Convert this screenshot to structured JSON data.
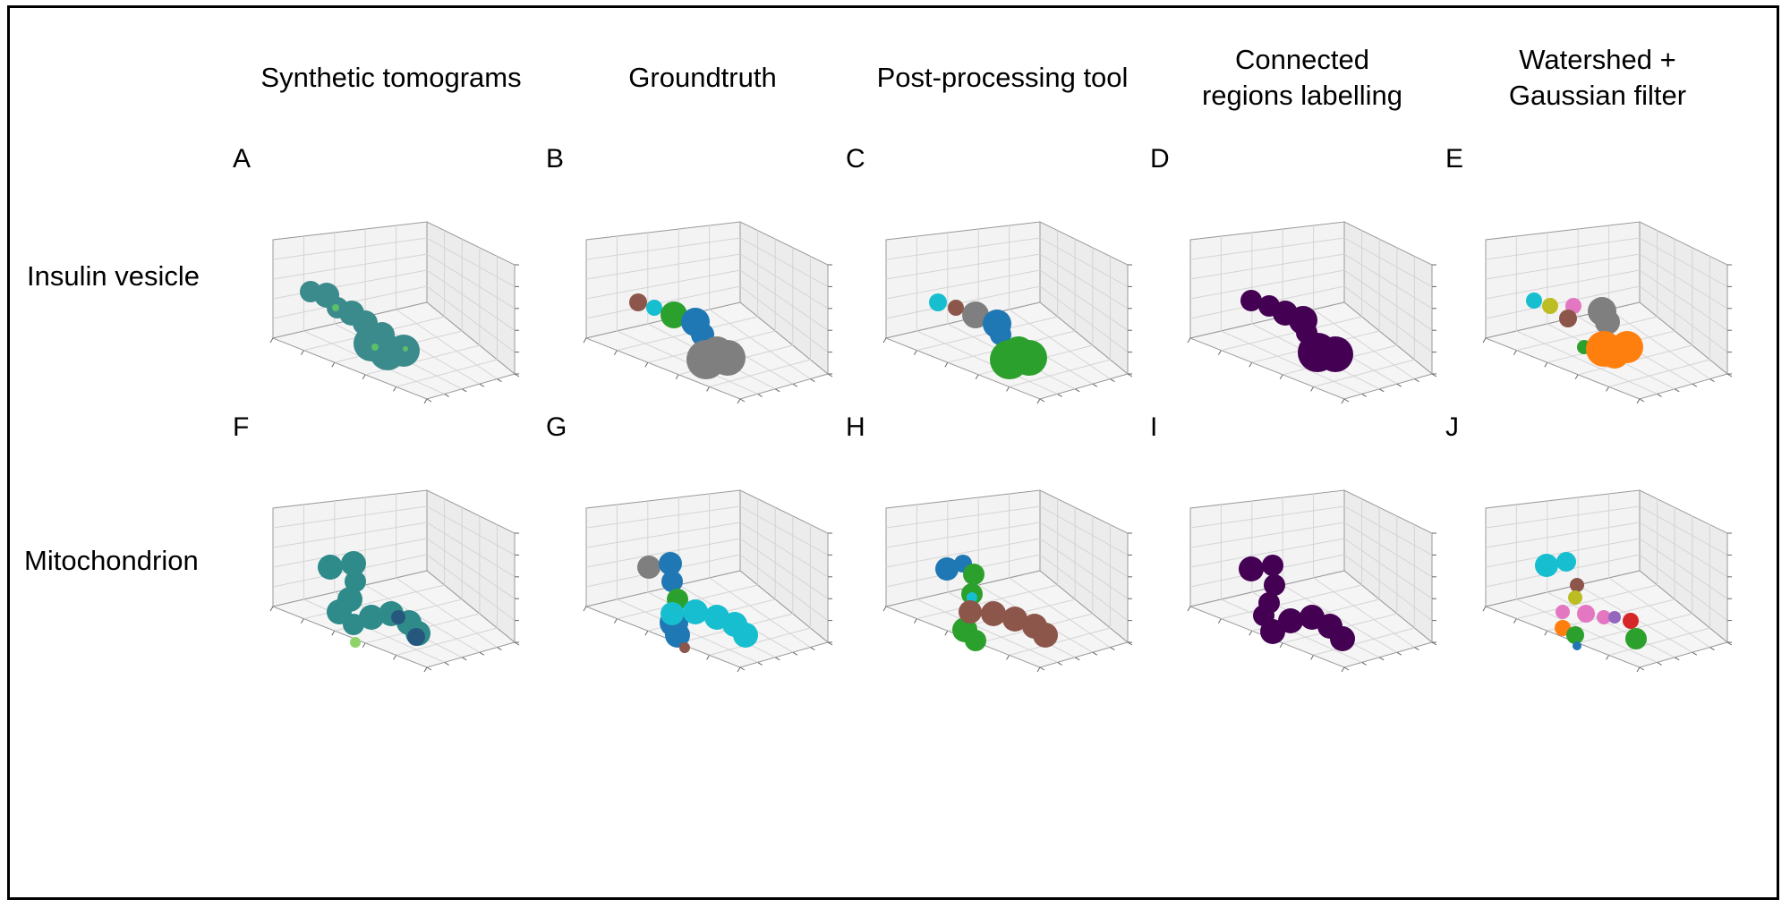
{
  "columns": [
    "Synthetic tomograms",
    "Groundtruth",
    "Post-processing tool",
    "Connected\nregions labelling",
    "Watershed +\nGaussian filter"
  ],
  "rows": [
    "Insulin vesicle",
    "Mitochondrion"
  ],
  "panels": [
    {
      "letter": "A",
      "label": "Insulin vesicle, Synthetic tomograms",
      "blobs": [
        {
          "color": "#3b8a8c",
          "points": [
            [
              32,
              48,
              12
            ],
            [
              50,
              52,
              14
            ],
            [
              62,
              66,
              12
            ],
            [
              78,
              72,
              14
            ],
            [
              93,
              83,
              14
            ],
            [
              100,
              106,
              20
            ],
            [
              118,
              116,
              20
            ],
            [
              136,
              114,
              18
            ],
            [
              112,
              96,
              14
            ]
          ]
        },
        {
          "color": "#5bbf6a",
          "points": [
            [
              60,
              66,
              4
            ],
            [
              104,
              110,
              4
            ],
            [
              138,
              112,
              3
            ]
          ]
        }
      ]
    },
    {
      "letter": "B",
      "label": "Insulin vesicle, Groundtruth",
      "blobs": [
        {
          "color": "#8c564b",
          "points": [
            [
              48,
              60,
              10
            ]
          ]
        },
        {
          "color": "#17becf",
          "points": [
            [
              66,
              66,
              9
            ]
          ]
        },
        {
          "color": "#2ca02c",
          "points": [
            [
              88,
              74,
              15
            ]
          ]
        },
        {
          "color": "#1f77b4",
          "points": [
            [
              112,
              82,
              16
            ],
            [
              120,
              96,
              13
            ]
          ]
        },
        {
          "color": "#7f7f7f",
          "points": [
            [
              124,
              124,
              22
            ],
            [
              148,
              122,
              20
            ],
            [
              136,
              116,
              18
            ]
          ]
        }
      ]
    },
    {
      "letter": "C",
      "label": "Insulin vesicle, Post-processing tool",
      "blobs": [
        {
          "color": "#17becf",
          "points": [
            [
              48,
              60,
              10
            ]
          ]
        },
        {
          "color": "#8c564b",
          "points": [
            [
              68,
              66,
              9
            ]
          ]
        },
        {
          "color": "#7f7f7f",
          "points": [
            [
              90,
              74,
              15
            ]
          ]
        },
        {
          "color": "#1f77b4",
          "points": [
            [
              114,
              84,
              16
            ],
            [
              118,
              96,
              12
            ]
          ]
        },
        {
          "color": "#2ca02c",
          "points": [
            [
              128,
              124,
              22
            ],
            [
              150,
              122,
              20
            ],
            [
              138,
              116,
              18
            ]
          ]
        }
      ]
    },
    {
      "letter": "D",
      "label": "Insulin vesicle, Connected regions labelling",
      "blobs": [
        {
          "color": "#440154",
          "points": [
            [
              58,
              58,
              12
            ],
            [
              78,
              64,
              12
            ],
            [
              96,
              72,
              14
            ],
            [
              116,
              80,
              16
            ],
            [
              120,
              94,
              12
            ],
            [
              132,
              116,
              22
            ],
            [
              152,
              118,
              20
            ]
          ]
        }
      ]
    },
    {
      "letter": "E",
      "label": "Insulin vesicle, Watershed + Gaussian filter",
      "blobs": [
        {
          "color": "#17becf",
          "points": [
            [
              44,
              58,
              9
            ]
          ]
        },
        {
          "color": "#bcbd22",
          "points": [
            [
              62,
              64,
              9
            ]
          ]
        },
        {
          "color": "#e377c2",
          "points": [
            [
              88,
              64,
              9
            ]
          ]
        },
        {
          "color": "#8c564b",
          "points": [
            [
              82,
              78,
              10
            ]
          ]
        },
        {
          "color": "#7f7f7f",
          "points": [
            [
              120,
              70,
              16
            ],
            [
              126,
              82,
              14
            ]
          ]
        },
        {
          "color": "#2ca02c",
          "points": [
            [
              100,
              110,
              8
            ]
          ]
        },
        {
          "color": "#ff7f0e",
          "points": [
            [
              122,
              112,
              20
            ],
            [
              148,
              110,
              18
            ],
            [
              134,
              118,
              16
            ]
          ]
        }
      ]
    },
    {
      "letter": "F",
      "label": "Mitochondrion, Synthetic tomograms",
      "blobs": [
        {
          "color": "#2f8a8a",
          "points": [
            [
              54,
              56,
              14
            ],
            [
              80,
              52,
              14
            ],
            [
              82,
              72,
              12
            ],
            [
              76,
              92,
              14
            ],
            [
              64,
              106,
              14
            ],
            [
              80,
              120,
              12
            ],
            [
              100,
              112,
              14
            ],
            [
              122,
              108,
              14
            ],
            [
              142,
              118,
              14
            ],
            [
              152,
              130,
              14
            ]
          ]
        },
        {
          "color": "#26587e",
          "points": [
            [
              150,
              134,
              10
            ],
            [
              130,
              112,
              8
            ]
          ]
        },
        {
          "color": "#8ed36a",
          "points": [
            [
              82,
              140,
              6
            ]
          ]
        }
      ]
    },
    {
      "letter": "G",
      "label": "Mitochondrion, Groundtruth",
      "blobs": [
        {
          "color": "#7f7f7f",
          "points": [
            [
              60,
              56,
              13
            ]
          ]
        },
        {
          "color": "#1f77b4",
          "points": [
            [
              84,
              52,
              13
            ],
            [
              86,
              72,
              12
            ],
            [
              88,
              118,
              16
            ],
            [
              92,
              132,
              14
            ]
          ]
        },
        {
          "color": "#2ca02c",
          "points": [
            [
              92,
              92,
              12
            ]
          ]
        },
        {
          "color": "#8c564b",
          "points": [
            [
              100,
              146,
              6
            ]
          ]
        },
        {
          "color": "#17becf",
          "points": [
            [
              86,
              108,
              13
            ],
            [
              112,
              106,
              14
            ],
            [
              136,
              112,
              14
            ],
            [
              156,
              120,
              14
            ],
            [
              168,
              132,
              14
            ]
          ]
        }
      ]
    },
    {
      "letter": "H",
      "label": "Mitochondrion, Post-processing tool",
      "blobs": [
        {
          "color": "#1f77b4",
          "points": [
            [
              58,
              58,
              13
            ],
            [
              76,
              52,
              10
            ]
          ]
        },
        {
          "color": "#2ca02c",
          "points": [
            [
              88,
              64,
              12
            ],
            [
              86,
              86,
              12
            ],
            [
              78,
              126,
              14
            ],
            [
              90,
              138,
              12
            ]
          ]
        },
        {
          "color": "#17becf",
          "points": [
            [
              86,
              90,
              6
            ]
          ]
        },
        {
          "color": "#8c564b",
          "points": [
            [
              84,
              106,
              13
            ],
            [
              110,
              108,
              14
            ],
            [
              134,
              114,
              14
            ],
            [
              156,
              122,
              14
            ],
            [
              168,
              132,
              14
            ]
          ]
        }
      ]
    },
    {
      "letter": "I",
      "label": "Mitochondrion, Connected regions labelling",
      "blobs": [
        {
          "color": "#440154",
          "points": [
            [
              58,
              58,
              14
            ],
            [
              82,
              54,
              12
            ],
            [
              84,
              76,
              12
            ],
            [
              78,
              96,
              12
            ],
            [
              72,
              110,
              12
            ],
            [
              82,
              128,
              14
            ],
            [
              102,
              116,
              14
            ],
            [
              126,
              112,
              14
            ],
            [
              146,
              122,
              14
            ],
            [
              160,
              136,
              14
            ]
          ]
        }
      ]
    },
    {
      "letter": "J",
      "label": "Mitochondrion, Watershed + Gaussian filter",
      "blobs": [
        {
          "color": "#17becf",
          "points": [
            [
              58,
              54,
              13
            ],
            [
              80,
              50,
              11
            ]
          ]
        },
        {
          "color": "#8c564b",
          "points": [
            [
              92,
              76,
              8
            ]
          ]
        },
        {
          "color": "#bcbd22",
          "points": [
            [
              90,
              90,
              8
            ]
          ]
        },
        {
          "color": "#e377c2",
          "points": [
            [
              76,
              106,
              8
            ],
            [
              102,
              108,
              10
            ],
            [
              122,
              112,
              8
            ]
          ]
        },
        {
          "color": "#9467bd",
          "points": [
            [
              134,
              112,
              7
            ]
          ]
        },
        {
          "color": "#d62728",
          "points": [
            [
              152,
              116,
              9
            ]
          ]
        },
        {
          "color": "#ff7f0e",
          "points": [
            [
              76,
              124,
              9
            ]
          ]
        },
        {
          "color": "#2ca02c",
          "points": [
            [
              90,
              132,
              10
            ],
            [
              158,
              136,
              12
            ]
          ]
        },
        {
          "color": "#1f77b4",
          "points": [
            [
              92,
              144,
              5
            ]
          ]
        }
      ]
    }
  ]
}
